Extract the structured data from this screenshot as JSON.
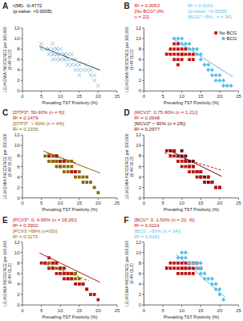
{
  "chart_data": [
    {
      "type": "scatter",
      "title": "A",
      "xlabel": "Prevailing TST Positivity (%)",
      "ylabel": "LEUKEMIA INCIDENCE per 100,000\n(0-4Y OLD)",
      "xlim": [
        0,
        25
      ],
      "ylim": [
        0,
        12
      ],
      "xticks": [
        0,
        5,
        10,
        15,
        20,
        25
      ],
      "yticks": [
        0,
        2,
        4,
        6,
        8,
        10,
        12
      ],
      "grid": false,
      "annotations": [
        {
          "text": "r(58): -0.4772\n(p-value: <0.0005)",
          "color": "#000000"
        }
      ],
      "series": [
        {
          "type": "scatter",
          "color": "#7fb9d8",
          "marker": "x",
          "x": [
            5,
            5,
            6,
            7,
            7,
            8,
            8,
            8,
            8,
            8,
            9,
            9,
            9,
            9,
            9,
            9,
            10,
            10,
            10,
            10,
            10,
            10,
            11,
            11,
            11,
            11,
            12,
            12,
            12,
            13,
            13,
            13,
            14,
            14,
            14,
            15,
            15,
            15,
            16,
            17,
            17,
            18,
            18,
            19,
            19,
            20
          ],
          "values": [
            8,
            9,
            8,
            7,
            8,
            6,
            7,
            7,
            8,
            9,
            6,
            7,
            7,
            7,
            8,
            8,
            6,
            6,
            7,
            7,
            7,
            8,
            6,
            6,
            7,
            7,
            5,
            6,
            7,
            5,
            6,
            7,
            4,
            5,
            6,
            3,
            4,
            5,
            4,
            4,
            5,
            3,
            4,
            2,
            3,
            1
          ]
        },
        {
          "type": "line",
          "color": "#333333",
          "line_style": "solid",
          "x": [
            4.5,
            20.5
          ],
          "values": [
            8.5175,
            3.9575
          ]
        }
      ]
    },
    {
      "type": "scatter",
      "title": "B",
      "xlabel": "Prevailing TST Positivity (%)",
      "ylabel": "LEUKEMIA INCIDENCE per 100,000\n(0-4Y OLD)",
      "xlim": [
        0,
        25
      ],
      "ylim": [
        0,
        12
      ],
      "xticks": [
        0,
        5,
        10,
        15,
        20,
        25
      ],
      "yticks": [
        0,
        2,
        4,
        6,
        8,
        10,
        12
      ],
      "grid": false,
      "legend": "upper right",
      "annotations": [
        {
          "text": "R² = 0.0053\n[No BCG* 0%\nn = 22]",
          "color": "#cc1111"
        },
        {
          "text": "R² = 0.5191\n(p-value: <0.0005)\n[BCG* >5%,  n = 34]",
          "color": "#55c0e8"
        }
      ],
      "series": [
        {
          "type": "scatter",
          "name": "No BCG",
          "color": "#cc1111",
          "marker": "square",
          "x": [
            6,
            7,
            7,
            8,
            8,
            8,
            8,
            9,
            9,
            9,
            9,
            9,
            10,
            10,
            10,
            10,
            11,
            11,
            12,
            12,
            13,
            13
          ],
          "values": [
            7,
            7,
            8,
            6,
            7,
            8,
            9,
            5,
            6,
            7,
            8,
            9,
            6,
            7,
            7,
            8,
            7,
            8,
            6,
            7,
            6,
            7
          ]
        },
        {
          "type": "scatter",
          "name": "BCG",
          "color": "#55c0e8",
          "marker": "diamond",
          "x": [
            8,
            9,
            10,
            10,
            11,
            12,
            12,
            13,
            14,
            14,
            15,
            15,
            16,
            17,
            17,
            18,
            18,
            19,
            19,
            20,
            20,
            21,
            21,
            22,
            23
          ],
          "values": [
            10,
            10,
            9,
            10,
            9,
            8,
            9,
            8,
            7,
            8,
            6,
            7,
            5,
            4,
            5,
            3,
            4,
            2,
            3,
            2,
            3,
            1,
            2,
            1,
            1
          ]
        },
        {
          "type": "line",
          "color": "#cc1111",
          "line_style": "dashed",
          "x": [
            5.5,
            13.5
          ],
          "values": [
            7.225,
            6.825
          ]
        },
        {
          "type": "line",
          "color": "#55c0e8",
          "line_style": "solid",
          "x": [
            7.5,
            23.5
          ],
          "values": [
            10.05,
            2.69
          ]
        }
      ]
    },
    {
      "type": "scatter",
      "title": "C",
      "xlabel": "Prevailing TST Positivity (%)",
      "ylabel": "LEUKEMIA INCIDENCE per 100,000\n(0-4Y OLD)",
      "xlim": [
        0,
        25
      ],
      "ylim": [
        0,
        12
      ],
      "xticks": [
        0,
        5,
        10,
        15,
        20,
        25
      ],
      "yticks": [
        0,
        2,
        4,
        6,
        8,
        10,
        12
      ],
      "grid": false,
      "annotations": [
        {
          "text": "[DTP3*: 50-90% (n = 6)]\nR² = 0.1479",
          "color": "#bb1111"
        },
        {
          "text": "[DTP3*  > 90% (n = 44)]\nR² = 0.2335",
          "color": "#886600"
        }
      ],
      "series": [
        {
          "type": "scatter",
          "color": "#886600",
          "marker": "square",
          "x": [
            6,
            7,
            7,
            8,
            8,
            8,
            8,
            9,
            9,
            9,
            9,
            9,
            10,
            10,
            10,
            10,
            11,
            11,
            11,
            12,
            12,
            12,
            13,
            13,
            13,
            14,
            14,
            15,
            15,
            16,
            16,
            17,
            17,
            18,
            19,
            20
          ],
          "values": [
            8,
            7,
            8,
            7,
            7,
            8,
            8,
            6,
            7,
            7,
            8,
            8,
            6,
            6,
            7,
            7,
            5,
            6,
            7,
            5,
            6,
            7,
            5,
            6,
            7,
            4,
            5,
            4,
            5,
            3,
            4,
            3,
            4,
            3,
            2,
            1
          ]
        },
        {
          "type": "scatter",
          "color": "#bb1111",
          "marker": "square",
          "x": [
            7,
            9,
            10,
            11,
            13,
            14
          ],
          "values": [
            8,
            8,
            7,
            7,
            5,
            5
          ]
        },
        {
          "type": "line",
          "color": "#bb1111",
          "line_style": "dashed",
          "x": [
            6.5,
            14.5
          ],
          "values": [
            8.575,
            6.575
          ]
        },
        {
          "type": "line",
          "color": "#886600",
          "line_style": "solid",
          "x": [
            5.5,
            20.5
          ],
          "values": [
            8.96,
            4.76
          ]
        }
      ]
    },
    {
      "type": "scatter",
      "title": "D",
      "xlabel": "Prevailing TST Positivity (%)",
      "ylabel": "LEUKEMIA INCIDENCE per 100,000\n(0-4Y OLD)",
      "xlim": [
        0,
        25
      ],
      "ylim": [
        0,
        12
      ],
      "xticks": [
        0,
        5,
        10,
        15,
        20,
        25
      ],
      "yticks": [
        0,
        2,
        4,
        6,
        8,
        10,
        12
      ],
      "grid": false,
      "annotations": [
        {
          "text": "[MCV2*: 0.75-90% (n = 1,21)]\nR² = 0.0948",
          "color": "#bb1111"
        },
        {
          "text": "[MCV2* > 90% (n = 28)]\nR² = 0.2977",
          "color": "#660000"
        }
      ],
      "series": [
        {
          "type": "scatter",
          "color": "#660000",
          "marker": "square",
          "x": [
            7,
            8,
            9,
            10,
            10,
            11,
            11,
            12,
            12,
            13,
            13,
            14,
            15,
            15,
            16,
            16,
            17,
            17,
            18,
            19,
            20
          ],
          "values": [
            9,
            9,
            8,
            8,
            9,
            7,
            8,
            6,
            7,
            6,
            7,
            5,
            4,
            5,
            3,
            4,
            3,
            4,
            3,
            2,
            2
          ]
        },
        {
          "type": "scatter",
          "color": "#bb1111",
          "marker": "square",
          "x": [
            6,
            7,
            8,
            8,
            9,
            9,
            10,
            10,
            11,
            11,
            12,
            12,
            13,
            13,
            14,
            14,
            15,
            15,
            16,
            17,
            18,
            19,
            20
          ],
          "values": [
            9,
            8,
            8,
            9,
            7,
            8,
            6,
            7,
            6,
            7,
            5,
            6,
            5,
            6,
            4,
            5,
            4,
            5,
            3,
            4,
            3,
            2,
            2
          ]
        },
        {
          "type": "line",
          "color": "#bb1111",
          "line_style": "dashed",
          "x": [
            5.5,
            20.5
          ],
          "values": [
            8.59,
            5.29
          ]
        },
        {
          "type": "line",
          "color": "#660000",
          "line_style": "solid",
          "x": [
            6.5,
            20.5
          ],
          "values": [
            9.16,
            4.12
          ]
        }
      ]
    },
    {
      "type": "scatter",
      "title": "E",
      "xlabel": "Prevailing TST Positivity (%)",
      "ylabel": "LEUKEMIA INCIDENCE per 100,000\n(0-4Y OLD)",
      "xlim": [
        0,
        25
      ],
      "ylim": [
        0,
        12
      ],
      "xticks": [
        0,
        5,
        10,
        15,
        20,
        25
      ],
      "yticks": [
        0,
        2,
        4,
        6,
        8,
        10,
        12
      ],
      "grid": false,
      "annotations": [
        {
          "text": "[PCV3*: 0, 4-99% (n = 18,26)]\nR² = 0.3302",
          "color": "#bb1111"
        },
        {
          "text": "[PCV3 >99% (n=20)]\nR² = 0.1173",
          "color": "#886600"
        }
      ],
      "series": [
        {
          "type": "scatter",
          "color": "#886600",
          "marker": "square",
          "x": [
            6,
            7,
            8,
            8,
            9,
            9,
            10,
            10,
            11,
            11,
            12,
            12,
            13,
            13,
            14,
            14,
            15,
            15,
            16,
            17
          ],
          "values": [
            8,
            8,
            7,
            8,
            7,
            8,
            6,
            7,
            6,
            7,
            5,
            6,
            5,
            6,
            5,
            6,
            4,
            5,
            4,
            3
          ]
        },
        {
          "type": "scatter",
          "color": "#bb1111",
          "marker": "square",
          "x": [
            5,
            6,
            7,
            7,
            8,
            8,
            9,
            9,
            10,
            10,
            10,
            11,
            11,
            11,
            12,
            12,
            13,
            13,
            14,
            15,
            16,
            17,
            18,
            19,
            20
          ],
          "values": [
            8,
            8,
            7,
            9,
            7,
            8,
            6,
            8,
            6,
            7,
            7,
            5,
            6,
            7,
            5,
            6,
            5,
            6,
            4,
            4,
            4,
            3,
            2,
            2,
            1
          ]
        },
        {
          "type": "line",
          "color": "#bb1111",
          "line_style": "solid",
          "x": [
            4.5,
            20.5
          ],
          "values": [
            9.925,
            4.325
          ]
        },
        {
          "type": "line",
          "color": "#886600",
          "line_style": "dashed",
          "x": [
            5.5,
            17.5
          ],
          "values": [
            7.96,
            4.6
          ]
        }
      ]
    },
    {
      "type": "scatter",
      "title": "F",
      "xlabel": "Prevailing TST Positivity (%)",
      "ylabel": "LEUKEMIA INCIDENCE per 100,000\n(0-4Y OLD)",
      "xlim": [
        0,
        25
      ],
      "ylim": [
        0,
        12
      ],
      "xticks": [
        0,
        5,
        10,
        15,
        20,
        25
      ],
      "yticks": [
        0,
        2,
        4,
        6,
        8,
        10,
        12
      ],
      "grid": false,
      "annotations": [
        {
          "text": "[BCG*: 0, 1-50% (n = 22, 4)]\nR² = 0.0114",
          "color": "#bb1111"
        },
        {
          "text": "[BCG: >50% (n = 34)]\nR² = 0.6191",
          "color": "#55c0e8"
        }
      ],
      "series": [
        {
          "type": "scatter",
          "color": "#bb1111",
          "marker": "square",
          "x": [
            6,
            7,
            7,
            8,
            8,
            9,
            9,
            9,
            10,
            10,
            10,
            10,
            11,
            11,
            11,
            11,
            12,
            12,
            12,
            13,
            13,
            13,
            14,
            14,
            15
          ],
          "values": [
            7,
            7,
            8,
            7,
            8,
            6,
            7,
            8,
            6,
            7,
            7,
            8,
            6,
            7,
            7,
            8,
            6,
            7,
            8,
            6,
            7,
            8,
            7,
            8,
            7
          ]
        },
        {
          "type": "scatter",
          "color": "#55c0e8",
          "marker": "diamond",
          "x": [
            9,
            10,
            10,
            11,
            11,
            12,
            13,
            14,
            14,
            15,
            15,
            15,
            16,
            16,
            17,
            18,
            18,
            19,
            19,
            20,
            20,
            21
          ],
          "values": [
            9,
            9,
            10,
            9,
            10,
            8,
            8,
            7,
            8,
            6,
            7,
            8,
            5,
            6,
            5,
            4,
            5,
            3,
            4,
            2,
            3,
            1
          ]
        },
        {
          "type": "line",
          "color": "#bb1111",
          "line_style": "dashed",
          "x": [
            5.5,
            15.5
          ],
          "values": [
            7.28,
            6.88
          ]
        },
        {
          "type": "line",
          "color": "#55c0e8",
          "line_style": "solid",
          "x": [
            8.5,
            21.5
          ],
          "values": [
            9.645,
            1.455
          ]
        }
      ]
    }
  ]
}
